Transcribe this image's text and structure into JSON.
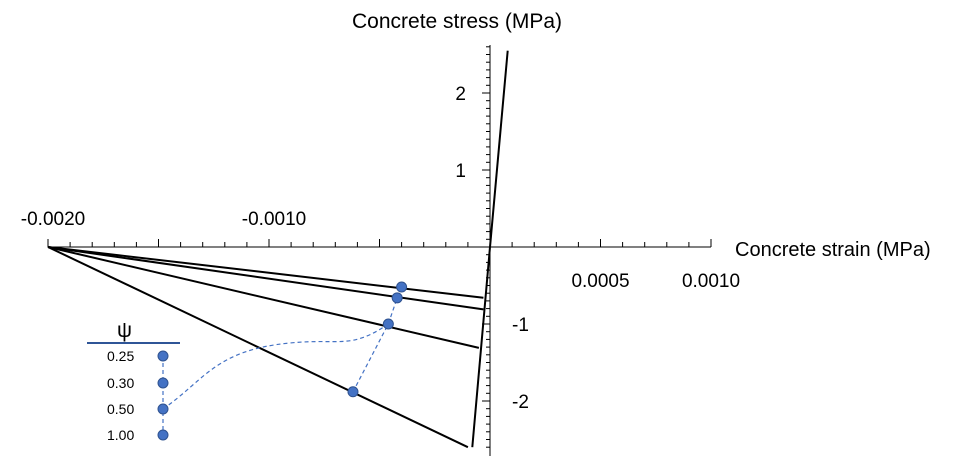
{
  "chart_data": {
    "type": "line",
    "xlabel": "Concrete strain (MPa)",
    "ylabel": "Concrete stress (MPa)",
    "xlim": [
      -0.002,
      0.001
    ],
    "ylim": [
      -2.6,
      2.6
    ],
    "x_tick_labels": [
      {
        "value": -0.002,
        "label": "-0.0020"
      },
      {
        "value": -0.001,
        "label": "-0.0010"
      },
      {
        "value": 0.0005,
        "label": "0.0005"
      },
      {
        "value": 0.001,
        "label": "0.0010"
      }
    ],
    "y_tick_labels": [
      {
        "value": 2,
        "label": "2"
      },
      {
        "value": 1,
        "label": "1"
      },
      {
        "value": -1,
        "label": "-1"
      },
      {
        "value": -2,
        "label": "-2"
      }
    ],
    "backbone": {
      "points": [
        [
          -8e-05,
          -2.6
        ],
        [
          0.0,
          0.0
        ],
        [
          8e-05,
          2.55
        ]
      ]
    },
    "series": [
      {
        "points": [
          [
            -0.002,
            0.0
          ],
          [
            -3e-05,
            -0.66
          ]
        ]
      },
      {
        "points": [
          [
            -0.002,
            0.0
          ],
          [
            -3e-05,
            -0.81
          ]
        ]
      },
      {
        "points": [
          [
            -0.002,
            0.0
          ],
          [
            -5e-05,
            -1.31
          ]
        ]
      },
      {
        "points": [
          [
            -0.002,
            0.0
          ],
          [
            -0.0001,
            -2.6
          ]
        ]
      }
    ],
    "psi_markers": [
      {
        "x": -0.0004,
        "y": -0.52
      },
      {
        "x": -0.00042,
        "y": -0.66
      },
      {
        "x": -0.00046,
        "y": -1.0
      },
      {
        "x": -0.00062,
        "y": -1.88
      }
    ],
    "legend": {
      "title": "ψ",
      "entries": [
        "0.25",
        "0.30",
        "0.50",
        "1.00"
      ],
      "color": "#4472C4"
    }
  },
  "colors": {
    "lines": "#000000",
    "markers": "#4472C4"
  }
}
